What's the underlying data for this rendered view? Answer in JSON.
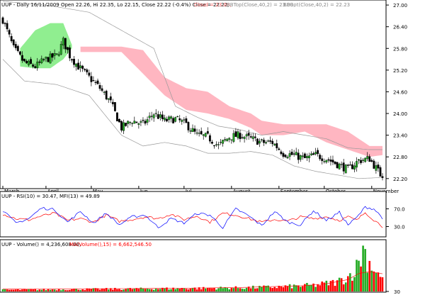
{
  "chart_data": [
    {
      "type": "candlestick",
      "panel": "price",
      "header": {
        "symbol_info": "UUP - Daily 16/11/2009 Open 22.26, Hi 22.35, Lo 22.15, Close 22.22 (-0.4%) Close = 22.22,",
        "ind1": "Cloud = 23.08,",
        "ind2": "BBTop(Close,40,2) = 23.00,",
        "ind3": "BBBot(Close,40,2) = 22.23"
      },
      "y_ticks": [
        "27.00",
        "26.40",
        "25.80",
        "25.20",
        "24.60",
        "24.00",
        "23.40",
        "22.80",
        "22.20"
      ],
      "ylim": [
        22.0,
        27.1
      ],
      "x_tick_labels": [
        "March",
        "April",
        "May",
        "Jun",
        "Jul",
        "August",
        "September",
        "October",
        "November"
      ],
      "x_tick_idx": [
        0,
        20,
        41,
        63,
        84,
        106,
        128,
        149,
        171
      ],
      "last": {
        "open": 22.26,
        "high": 22.35,
        "low": 22.15,
        "close": 22.22
      },
      "close_anchors": [
        [
          0,
          26.6
        ],
        [
          5,
          25.8
        ],
        [
          10,
          25.4
        ],
        [
          15,
          25.3
        ],
        [
          20,
          25.5
        ],
        [
          25,
          25.6
        ],
        [
          28,
          26.0
        ],
        [
          31,
          25.6
        ],
        [
          35,
          25.3
        ],
        [
          40,
          25.0
        ],
        [
          45,
          24.7
        ],
        [
          50,
          24.3
        ],
        [
          55,
          23.6
        ],
        [
          60,
          23.8
        ],
        [
          65,
          23.7
        ],
        [
          70,
          24.0
        ],
        [
          75,
          23.8
        ],
        [
          80,
          23.85
        ],
        [
          85,
          23.7
        ],
        [
          90,
          23.4
        ],
        [
          95,
          23.35
        ],
        [
          100,
          23.1
        ],
        [
          105,
          23.35
        ],
        [
          110,
          23.4
        ],
        [
          115,
          23.3
        ],
        [
          120,
          23.2
        ],
        [
          125,
          23.2
        ],
        [
          130,
          22.9
        ],
        [
          135,
          22.85
        ],
        [
          140,
          22.75
        ],
        [
          145,
          22.85
        ],
        [
          150,
          22.75
        ],
        [
          155,
          22.6
        ],
        [
          160,
          22.45
        ],
        [
          165,
          22.7
        ],
        [
          170,
          22.75
        ],
        [
          174,
          22.4
        ],
        [
          176,
          22.22
        ]
      ],
      "bb_top_anchors": [
        [
          0,
          27.1
        ],
        [
          20,
          27.0
        ],
        [
          40,
          26.8
        ],
        [
          55,
          26.3
        ],
        [
          70,
          25.8
        ],
        [
          80,
          24.2
        ],
        [
          90,
          23.9
        ],
        [
          100,
          23.65
        ],
        [
          110,
          23.55
        ],
        [
          120,
          23.4
        ],
        [
          130,
          23.5
        ],
        [
          140,
          23.4
        ],
        [
          150,
          23.3
        ],
        [
          160,
          23.05
        ],
        [
          170,
          23.0
        ],
        [
          176,
          23.0
        ]
      ],
      "bb_bot_anchors": [
        [
          0,
          25.5
        ],
        [
          10,
          24.9
        ],
        [
          25,
          24.8
        ],
        [
          40,
          24.5
        ],
        [
          55,
          23.4
        ],
        [
          65,
          23.1
        ],
        [
          75,
          23.2
        ],
        [
          85,
          23.1
        ],
        [
          95,
          22.9
        ],
        [
          105,
          22.9
        ],
        [
          115,
          22.95
        ],
        [
          125,
          22.85
        ],
        [
          135,
          22.55
        ],
        [
          145,
          22.4
        ],
        [
          155,
          22.3
        ],
        [
          165,
          22.2
        ],
        [
          176,
          22.23
        ]
      ],
      "cloud_green_anchors": [
        [
          8,
          25.3,
          25.8
        ],
        [
          15,
          25.25,
          26.3
        ],
        [
          22,
          25.25,
          26.5
        ],
        [
          28,
          25.5,
          26.5
        ],
        [
          32,
          25.8,
          25.9
        ]
      ],
      "cloud_pink_anchors": [
        [
          36,
          25.7,
          25.85
        ],
        [
          45,
          25.7,
          25.85
        ],
        [
          55,
          25.7,
          25.85
        ],
        [
          65,
          25.1,
          25.75
        ],
        [
          75,
          24.5,
          25.0
        ],
        [
          85,
          24.1,
          24.7
        ],
        [
          95,
          24.0,
          24.6
        ],
        [
          105,
          23.85,
          24.2
        ],
        [
          115,
          23.6,
          24.0
        ],
        [
          120,
          23.4,
          23.8
        ],
        [
          130,
          23.4,
          23.7
        ],
        [
          140,
          23.5,
          23.7
        ],
        [
          150,
          23.2,
          23.7
        ],
        [
          160,
          23.0,
          23.5
        ],
        [
          170,
          22.8,
          23.1
        ],
        [
          176,
          22.85,
          23.1
        ]
      ]
    },
    {
      "type": "line",
      "panel": "rsi_mfi",
      "header": {
        "label": "UUP - RSI(10) = 30.47, MFI(13) = 49.89"
      },
      "y_ticks": [
        "70.0",
        "30.0"
      ],
      "ylim": [
        10,
        90
      ],
      "series": [
        {
          "name": "RSI(10)",
          "color": "#ff0000",
          "anchors": [
            [
              0,
              58
            ],
            [
              6,
              48
            ],
            [
              12,
              45
            ],
            [
              18,
              54
            ],
            [
              24,
              60
            ],
            [
              30,
              44
            ],
            [
              36,
              48
            ],
            [
              42,
              40
            ],
            [
              48,
              56
            ],
            [
              54,
              42
            ],
            [
              60,
              46
            ],
            [
              66,
              52
            ],
            [
              72,
              48
            ],
            [
              78,
              58
            ],
            [
              84,
              46
            ],
            [
              90,
              54
            ],
            [
              96,
              40
            ],
            [
              102,
              60
            ],
            [
              108,
              56
            ],
            [
              114,
              48
            ],
            [
              120,
              40
            ],
            [
              126,
              46
            ],
            [
              132,
              42
            ],
            [
              138,
              52
            ],
            [
              144,
              48
            ],
            [
              150,
              52
            ],
            [
              156,
              44
            ],
            [
              160,
              52
            ],
            [
              164,
              44
            ],
            [
              168,
              62
            ],
            [
              172,
              45
            ],
            [
              176,
              30.47
            ]
          ]
        },
        {
          "name": "MFI(13)",
          "color": "#0000ff",
          "anchors": [
            [
              0,
              66
            ],
            [
              6,
              38
            ],
            [
              12,
              48
            ],
            [
              18,
              72
            ],
            [
              24,
              68
            ],
            [
              30,
              40
            ],
            [
              36,
              64
            ],
            [
              42,
              38
            ],
            [
              48,
              60
            ],
            [
              54,
              34
            ],
            [
              60,
              52
            ],
            [
              66,
              56
            ],
            [
              72,
              28
            ],
            [
              78,
              48
            ],
            [
              84,
              38
            ],
            [
              90,
              60
            ],
            [
              96,
              56
            ],
            [
              102,
              28
            ],
            [
              108,
              70
            ],
            [
              114,
              54
            ],
            [
              120,
              32
            ],
            [
              126,
              64
            ],
            [
              132,
              40
            ],
            [
              138,
              34
            ],
            [
              144,
              66
            ],
            [
              150,
              44
            ],
            [
              156,
              62
            ],
            [
              160,
              34
            ],
            [
              164,
              50
            ],
            [
              168,
              74
            ],
            [
              172,
              70
            ],
            [
              176,
              49.89
            ]
          ]
        }
      ]
    },
    {
      "type": "bar",
      "panel": "volume",
      "header": {
        "a": "UUP - Volume() = 4,236,608.00,",
        "b": "MA(Volume(),15) = 6,662,546.50"
      },
      "y_ticks": [
        "30"
      ],
      "vol_anchors": [
        [
          0,
          0.6
        ],
        [
          30,
          0.8
        ],
        [
          60,
          1.0
        ],
        [
          90,
          1.2
        ],
        [
          110,
          1.4
        ],
        [
          130,
          1.8
        ],
        [
          145,
          2.4
        ],
        [
          155,
          3.6
        ],
        [
          160,
          5.5
        ],
        [
          164,
          9
        ],
        [
          167,
          16
        ],
        [
          170,
          11
        ],
        [
          173,
          8
        ],
        [
          176,
          4.2
        ]
      ],
      "ma_anchors": [
        [
          0,
          0.9
        ],
        [
          40,
          1.0
        ],
        [
          80,
          1.2
        ],
        [
          110,
          1.5
        ],
        [
          140,
          2.2
        ],
        [
          150,
          2.9
        ],
        [
          160,
          4.5
        ],
        [
          165,
          6.8
        ],
        [
          170,
          7.5
        ],
        [
          176,
          6.7
        ]
      ],
      "vmax": 18
    }
  ]
}
